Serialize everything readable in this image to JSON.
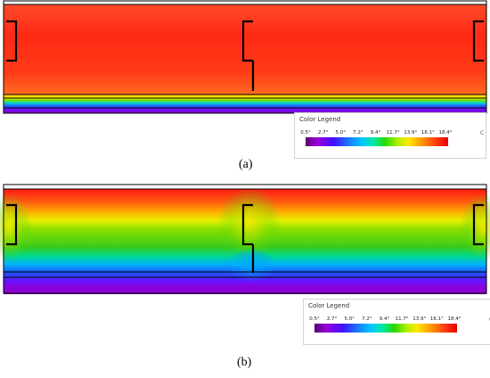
{
  "captions": {
    "a": "(a)",
    "b": "(b)"
  },
  "legend": {
    "title": "Color Legend",
    "unit": "C",
    "ticks": [
      "0.5°",
      "2.7°",
      "5.0°",
      "7.2°",
      "9.4°",
      "11.7°",
      "13.9°",
      "16.1°",
      "18.4°"
    ]
  },
  "colors": {
    "warm": "#ff3a1c",
    "cool_purple": "#8a00d8",
    "outline": "#000000"
  }
}
